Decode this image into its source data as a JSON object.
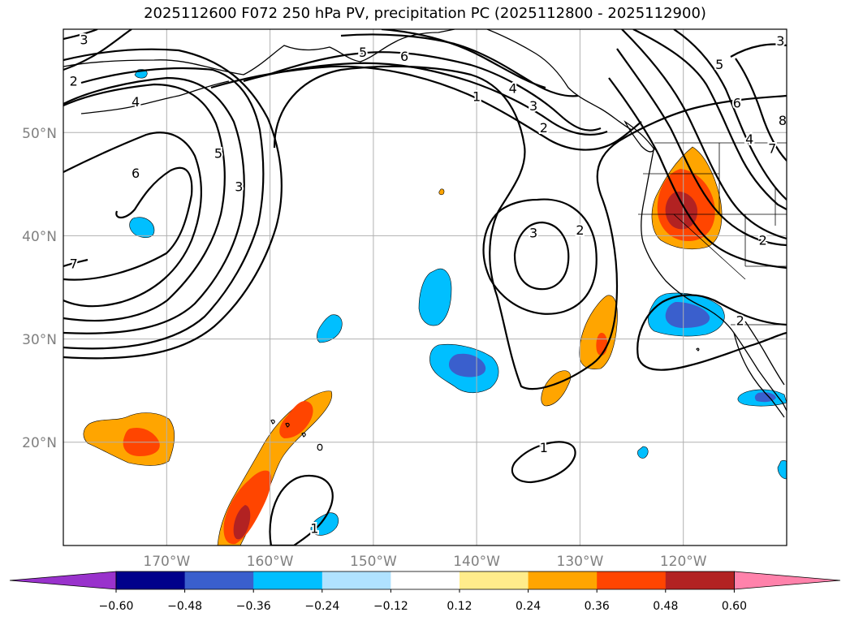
{
  "title": "2025112600 F072 250 hPa PV, precipitation PC (2025112800 - 2025112900)",
  "chart_data": {
    "type": "contour_map",
    "lon_range": [
      -180,
      -110
    ],
    "lat_range": [
      10,
      60
    ],
    "lat_ticks": [
      {
        "value": 20,
        "label": "20°N"
      },
      {
        "value": 30,
        "label": "30°N"
      },
      {
        "value": 40,
        "label": "40°N"
      },
      {
        "value": 50,
        "label": "50°N"
      }
    ],
    "lon_ticks": [
      {
        "value": -170,
        "label": "170°W"
      },
      {
        "value": -160,
        "label": "160°W"
      },
      {
        "value": -150,
        "label": "150°W"
      },
      {
        "value": -140,
        "label": "140°W"
      },
      {
        "value": -130,
        "label": "130°W"
      },
      {
        "value": -120,
        "label": "120°W"
      }
    ],
    "grid": true,
    "colorbar": {
      "levels": [
        -0.6,
        -0.48,
        -0.36,
        -0.24,
        -0.12,
        0.12,
        0.24,
        0.36,
        0.48,
        0.6
      ],
      "labels": [
        "−0.60",
        "−0.48",
        "−0.36",
        "−0.24",
        "−0.12",
        "0.12",
        "0.24",
        "0.36",
        "0.48",
        "0.60"
      ],
      "colors": [
        "#9932cc",
        "#00008b",
        "#3a5fcd",
        "#00bfff",
        "#b0e2ff",
        "#ffffff",
        "#ffec8b",
        "#ffa500",
        "#ff4500",
        "#b22222",
        "#ff82ab"
      ],
      "extend": "both"
    },
    "pv_contour_labels": [
      {
        "lon": -178,
        "lat": 59,
        "text": "3"
      },
      {
        "lon": -179,
        "lat": 55,
        "text": "2"
      },
      {
        "lon": -173,
        "lat": 53,
        "text": "4"
      },
      {
        "lon": -151,
        "lat": 57.8,
        "text": "5"
      },
      {
        "lon": -147,
        "lat": 57.4,
        "text": "6"
      },
      {
        "lon": -140,
        "lat": 53.5,
        "text": "1"
      },
      {
        "lon": -136.5,
        "lat": 54.3,
        "text": "4"
      },
      {
        "lon": -134.5,
        "lat": 52.6,
        "text": "3"
      },
      {
        "lon": -133.5,
        "lat": 50.5,
        "text": "2"
      },
      {
        "lon": -116.5,
        "lat": 56.6,
        "text": "5"
      },
      {
        "lon": -114.8,
        "lat": 52.9,
        "text": "6"
      },
      {
        "lon": -111.4,
        "lat": 48.5,
        "text": "7"
      },
      {
        "lon": -113.6,
        "lat": 49.4,
        "text": "4"
      },
      {
        "lon": -112.3,
        "lat": 39.6,
        "text": "2"
      },
      {
        "lon": -110.4,
        "lat": 51.2,
        "text": "8"
      },
      {
        "lon": -110.6,
        "lat": 58.9,
        "text": "3"
      },
      {
        "lon": -114.5,
        "lat": 31.8,
        "text": "2"
      },
      {
        "lon": -165,
        "lat": 48,
        "text": "5"
      },
      {
        "lon": -173,
        "lat": 46.1,
        "text": "6"
      },
      {
        "lon": -163,
        "lat": 44.8,
        "text": "3"
      },
      {
        "lon": -179,
        "lat": 37.3,
        "text": "7"
      },
      {
        "lon": -134.5,
        "lat": 40.3,
        "text": "3"
      },
      {
        "lon": -130,
        "lat": 40.6,
        "text": "2"
      },
      {
        "lon": -133.5,
        "lat": 19.5,
        "text": "1"
      },
      {
        "lon": -155.7,
        "lat": 11.7,
        "text": "1"
      }
    ]
  }
}
